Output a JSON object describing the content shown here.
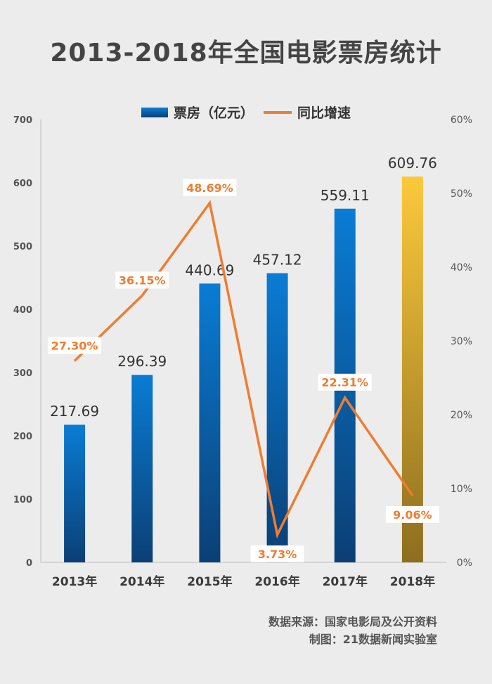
{
  "title": "2013-2018年全国电影票房统计",
  "legend": {
    "bar_label": "票房（亿元）",
    "line_label": "同比增速"
  },
  "footer": {
    "source": "数据来源：国家电影局及公开资料",
    "credit": "制图：21数据新闻实验室"
  },
  "colors": {
    "bar_top": "#0a7cd4",
    "bar_bottom": "#0b3f75",
    "highlight_top": "#fcc93c",
    "highlight_bottom": "#8c6e1f",
    "line": "#ef7d31",
    "axis_text": "#555555",
    "value_text": "#333333"
  },
  "chart_data": {
    "type": "bar+line",
    "title": "2013-2018年全国电影票房统计",
    "categories": [
      "2013年",
      "2014年",
      "2015年",
      "2016年",
      "2017年",
      "2018年"
    ],
    "series": [
      {
        "name": "票房（亿元）",
        "type": "bar",
        "axis": "left",
        "values": [
          217.69,
          296.39,
          440.69,
          457.12,
          559.11,
          609.76
        ],
        "labels": [
          "217.69",
          "296.39",
          "440.69",
          "457.12",
          "559.11",
          "609.76"
        ],
        "highlight_index": 5
      },
      {
        "name": "同比增速",
        "type": "line",
        "axis": "right",
        "values": [
          27.3,
          36.15,
          48.69,
          3.73,
          22.31,
          9.06
        ],
        "labels": [
          "27.30%",
          "36.15%",
          "48.69%",
          "3.73%",
          "22.31%",
          "9.06%"
        ]
      }
    ],
    "y_left": {
      "min": 0,
      "max": 700,
      "ticks": [
        "0",
        "100",
        "200",
        "300",
        "400",
        "500",
        "600",
        "700"
      ]
    },
    "y_right": {
      "min": 0,
      "max": 60,
      "ticks": [
        "0%",
        "10%",
        "20%",
        "30%",
        "40%",
        "50%",
        "60%"
      ]
    },
    "grid": false,
    "legend_position": "top-center"
  }
}
